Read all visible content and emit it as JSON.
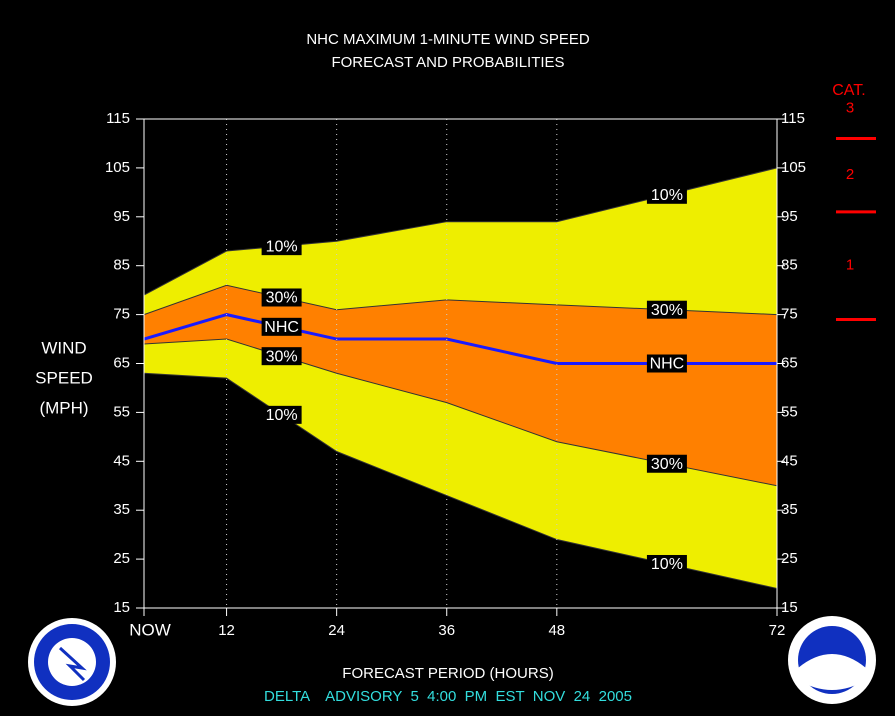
{
  "chart_data": {
    "type": "band-forecast",
    "title": [
      "NHC MAXIMUM 1-MINUTE WIND SPEED",
      "FORECAST AND PROBABILITIES"
    ],
    "ylabel": [
      "WIND",
      "SPEED",
      "(MPH)"
    ],
    "xlabel": "FORECAST PERIOD (HOURS)",
    "footer": "DELTA    ADVISORY  5  4:00  PM  EST  NOV  24  2005",
    "x": [
      3,
      12,
      24,
      36,
      48,
      72
    ],
    "xlim": [
      3,
      72
    ],
    "xticks": [
      {
        "value": 3,
        "label": "NOW"
      },
      12,
      24,
      36,
      48,
      72
    ],
    "ylim": [
      15,
      115
    ],
    "yticks": [
      15,
      25,
      35,
      45,
      55,
      65,
      75,
      85,
      95,
      105,
      115
    ],
    "grid": true,
    "series": [
      {
        "name": "10%",
        "color": "#eeee00",
        "upper": [
          79,
          88,
          90,
          94,
          94,
          105
        ],
        "lower": [
          63,
          62,
          47,
          38,
          29,
          19
        ]
      },
      {
        "name": "30%",
        "color": "#ff8000",
        "upper": [
          75,
          81,
          76,
          78,
          77,
          75
        ],
        "lower": [
          69,
          70,
          63,
          57,
          49,
          40
        ]
      },
      {
        "name": "NHC",
        "color": "#1a1aff",
        "values": [
          70,
          75,
          70,
          70,
          65,
          65
        ]
      }
    ],
    "category_scale": {
      "title": "CAT.",
      "color": "#ff0000",
      "labels": [
        "1",
        "2",
        "3"
      ],
      "thresholds": [
        74,
        96,
        111
      ]
    }
  }
}
